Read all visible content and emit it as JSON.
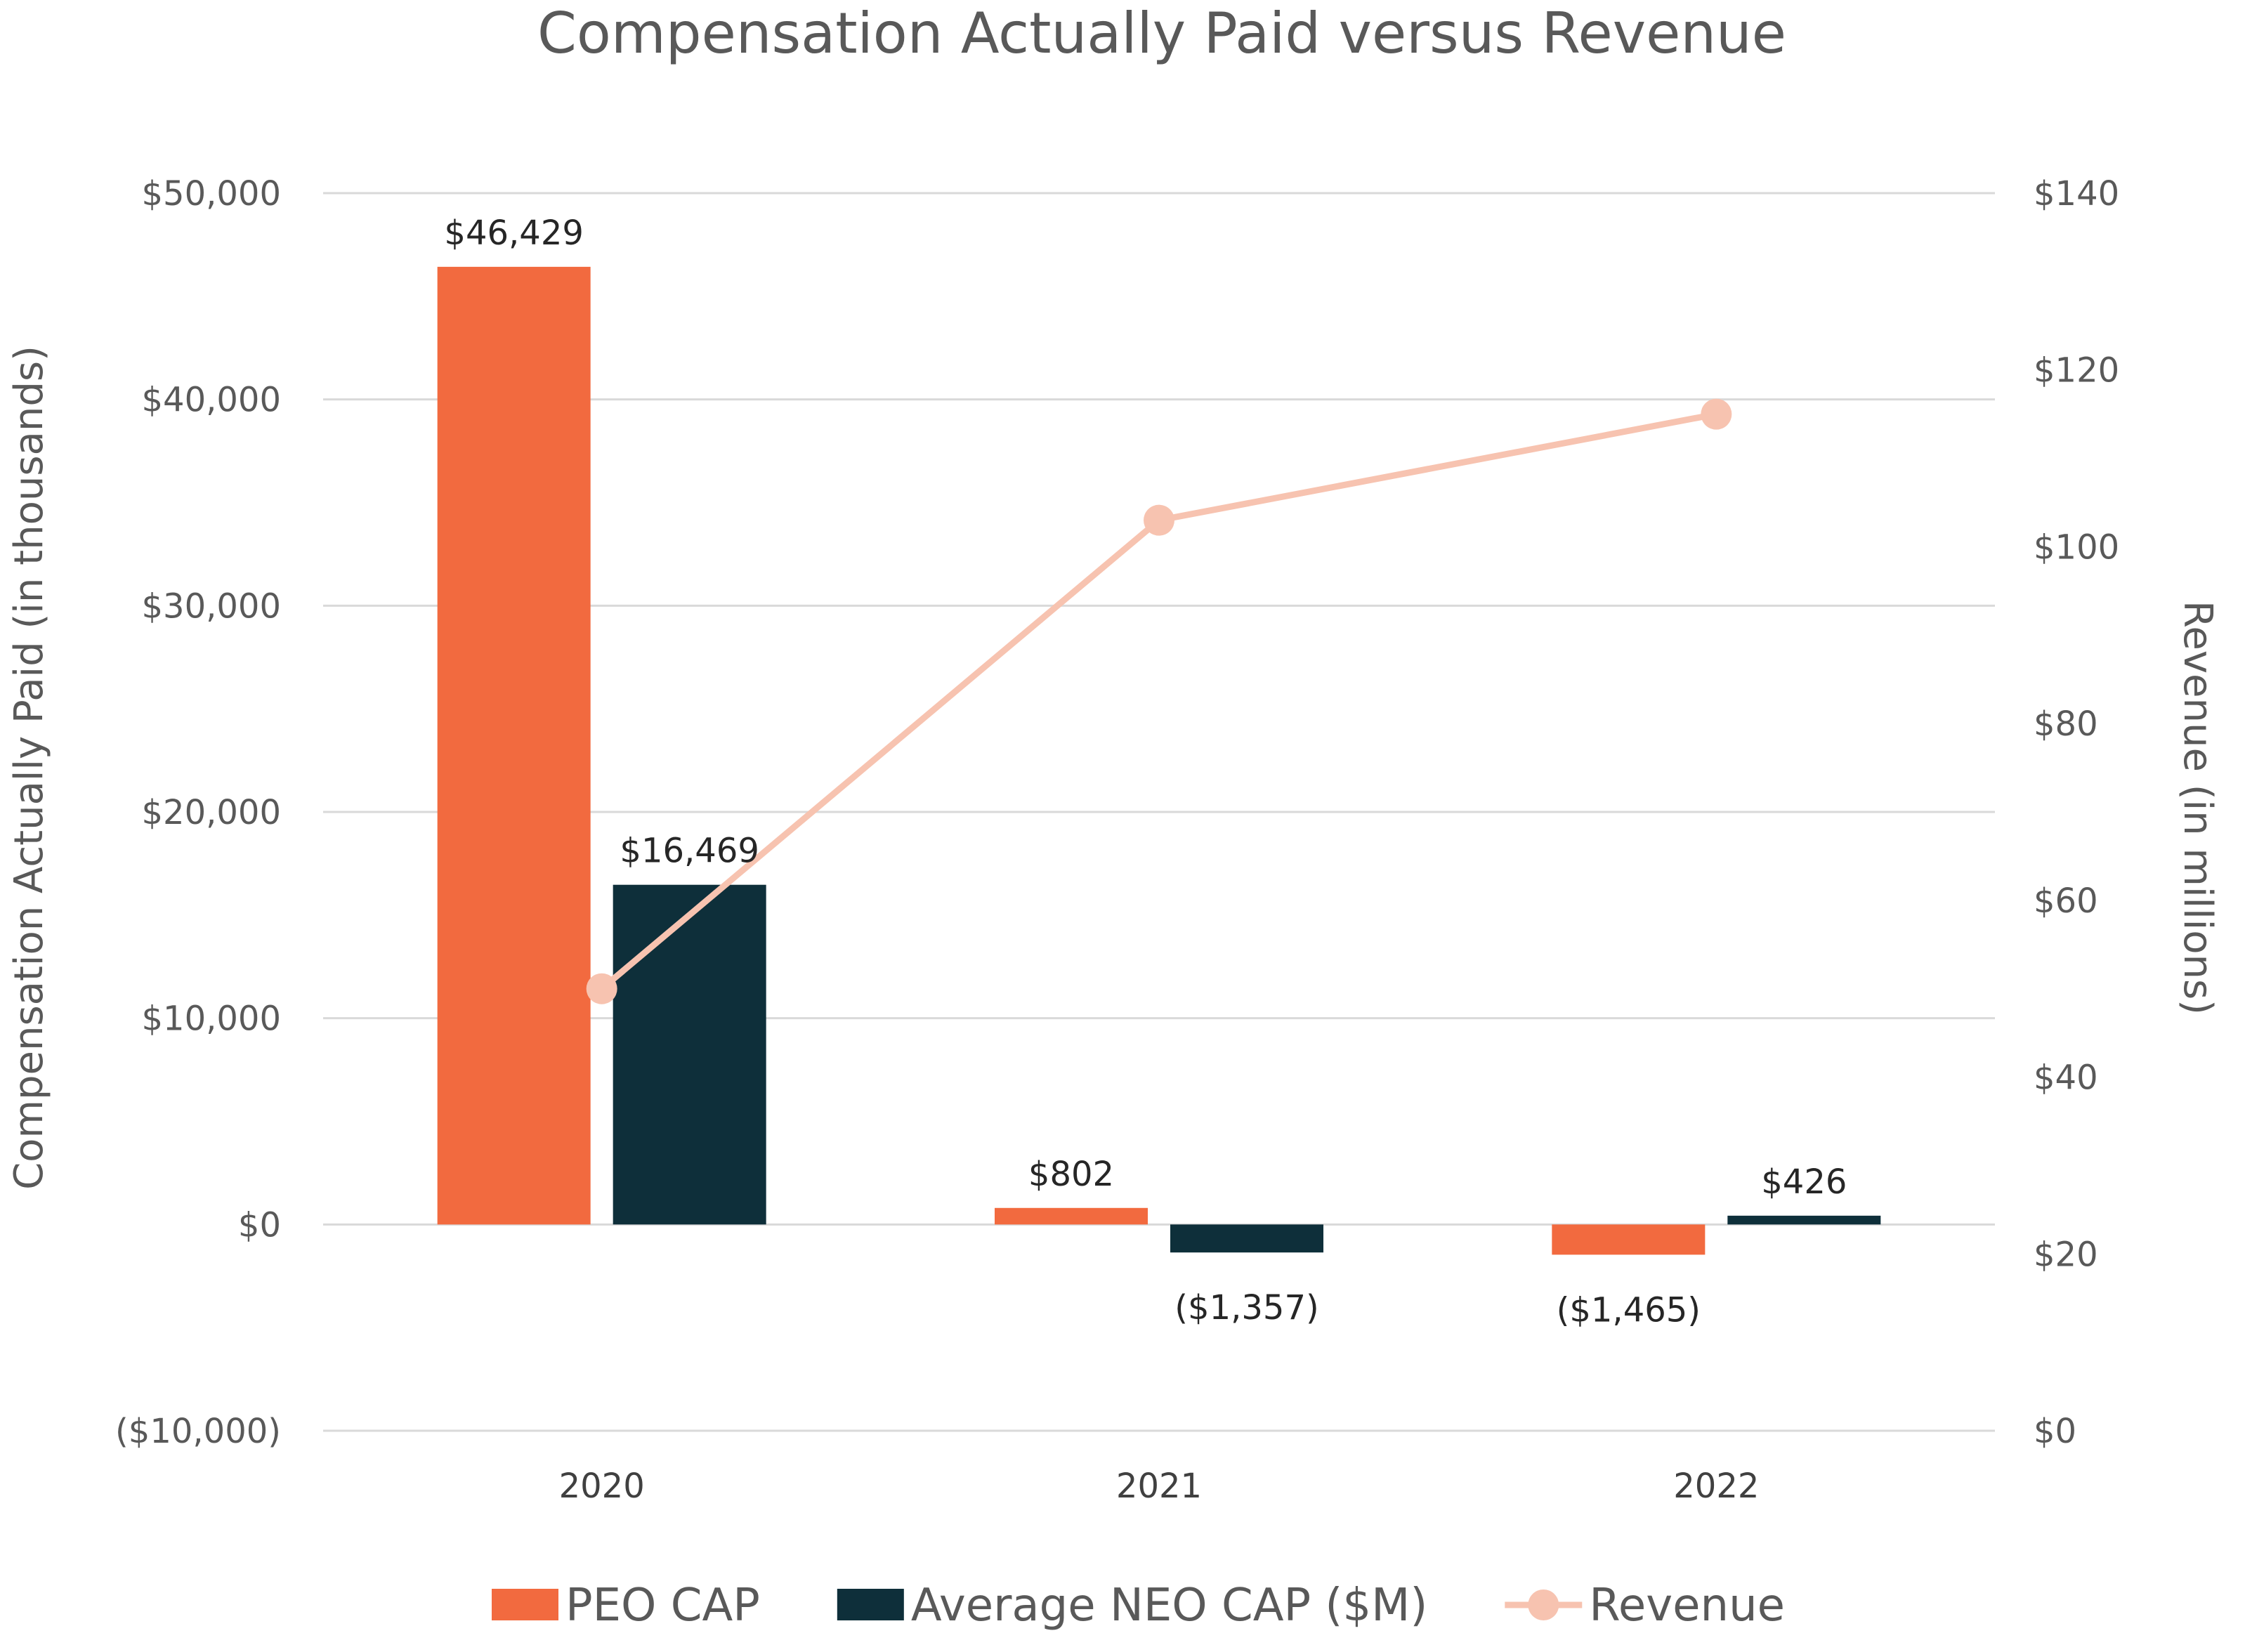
{
  "chart_data": {
    "type": "bar",
    "title": "Compensation Actually Paid versus Revenue",
    "categories": [
      "2020",
      "2021",
      "2022"
    ],
    "ylabel": "Compensation Actually Paid (in thousands)",
    "y2label": "Revenue (in millions)",
    "ylim": [
      -10000,
      50000
    ],
    "y2lim": [
      0,
      140
    ],
    "y_ticks": [
      {
        "value": 50000,
        "label": "$50,000"
      },
      {
        "value": 40000,
        "label": "$40,000"
      },
      {
        "value": 30000,
        "label": "$30,000"
      },
      {
        "value": 20000,
        "label": "$20,000"
      },
      {
        "value": 10000,
        "label": "$10,000"
      },
      {
        "value": 0,
        "label": "$0"
      },
      {
        "value": -10000,
        "label": "($10,000)"
      }
    ],
    "y2_ticks": [
      {
        "value": 140,
        "label": "$140"
      },
      {
        "value": 120,
        "label": "$120"
      },
      {
        "value": 100,
        "label": "$100"
      },
      {
        "value": 80,
        "label": "$80"
      },
      {
        "value": 60,
        "label": "$60"
      },
      {
        "value": 40,
        "label": "$40"
      },
      {
        "value": 20,
        "label": "$20"
      },
      {
        "value": 0,
        "label": "$0"
      }
    ],
    "series": [
      {
        "name": "PEO CAP",
        "type": "bar",
        "color": "#F26A3F",
        "values": [
          46429,
          802,
          -1465
        ],
        "labels": [
          "$46,429",
          "$802",
          "($1,465)"
        ]
      },
      {
        "name": "Average NEO CAP ($M)",
        "type": "bar",
        "color": "#0E2F3A",
        "values": [
          16469,
          -1357,
          426
        ],
        "labels": [
          "$16,469",
          "($1,357)",
          "$426"
        ]
      },
      {
        "name": "Revenue",
        "type": "line",
        "axis": "secondary",
        "color": "#F7C3B0",
        "values": [
          50,
          103,
          115
        ]
      }
    ],
    "negative_label_color": "#E02020",
    "grid": true,
    "legend_position": "bottom"
  }
}
